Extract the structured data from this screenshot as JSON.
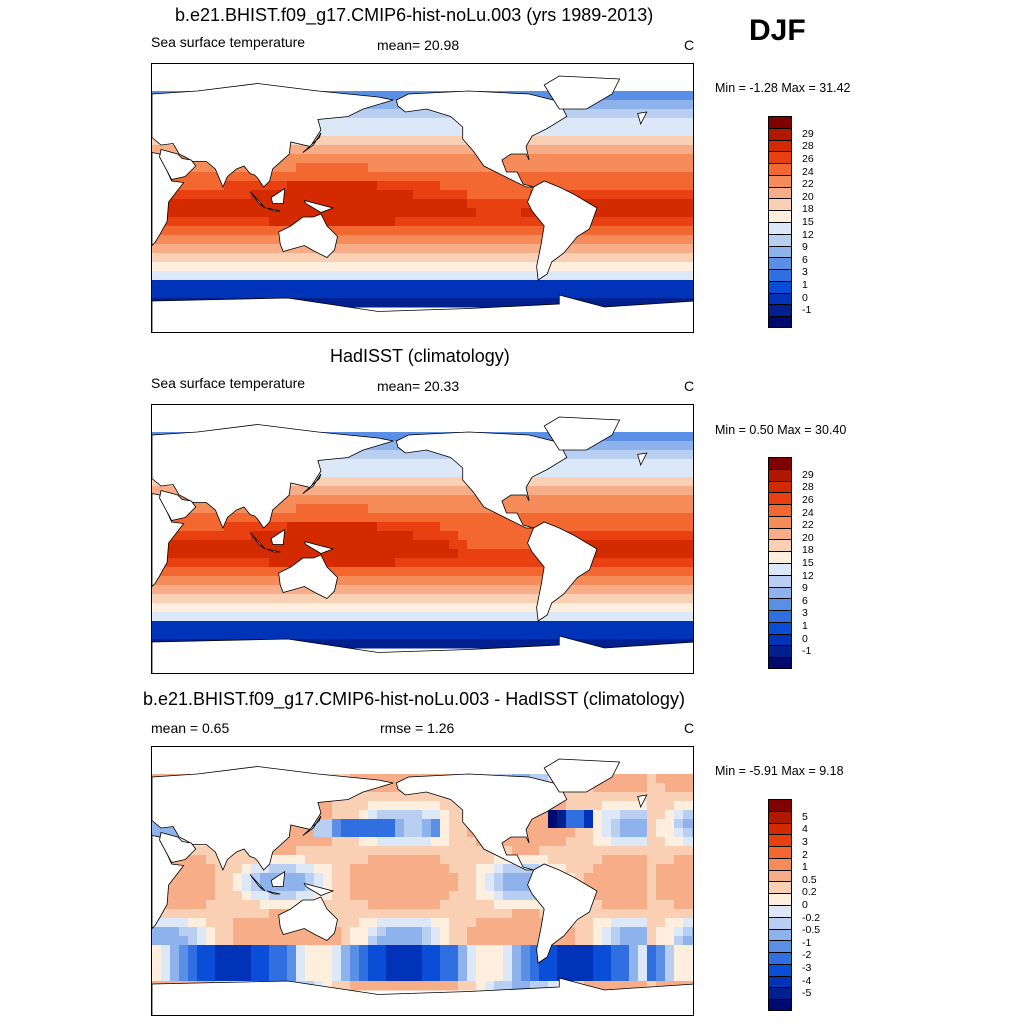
{
  "season": "DJF",
  "panels": [
    {
      "title": "b.e21.BHIST.f09_g17.CMIP6-hist-noLu.003 (yrs 1989-2013)",
      "left_label": "Sea surface temperature",
      "center_label": "mean=  20.98",
      "units": "C",
      "minmax": "Min =  -1.28 Max =  31.42",
      "field": "model"
    },
    {
      "title": "HadISST (climatology)",
      "left_label": "Sea surface temperature",
      "center_label": "mean=  20.33",
      "units": "C",
      "minmax": "Min =   0.50 Max =  30.40",
      "field": "obs"
    },
    {
      "title": "b.e21.BHIST.f09_g17.CMIP6-hist-noLu.003 - HadISST (climatology)",
      "left_label": "mean =   0.65",
      "center_label": "rmse =   1.26",
      "units": "C",
      "minmax": "Min =  -5.91 Max =   9.18",
      "field": "diff"
    }
  ],
  "colorbars": {
    "sst": {
      "colors": [
        "#800000",
        "#b01800",
        "#d42a00",
        "#e84010",
        "#f26830",
        "#f58c5a",
        "#f7ad88",
        "#fad0b4",
        "#fdeedd",
        "#dce8f8",
        "#b8cff2",
        "#8eb2ec",
        "#5a8fe6",
        "#2f6fe0",
        "#0a4ed8",
        "#0033b8",
        "#002090",
        "#000a6e"
      ],
      "labels": [
        "29",
        "28",
        "26",
        "24",
        "22",
        "20",
        "18",
        "15",
        "12",
        "9",
        "6",
        "3",
        "1",
        "0",
        "-1"
      ]
    },
    "diff": {
      "colors": [
        "#800000",
        "#b01800",
        "#d42a00",
        "#e84010",
        "#f26830",
        "#f58c5a",
        "#f7ad88",
        "#fad0b4",
        "#fdeedd",
        "#dce8f8",
        "#b8cff2",
        "#8eb2ec",
        "#5a8fe6",
        "#2f6fe0",
        "#0a4ed8",
        "#0033b8",
        "#002090",
        "#000a6e"
      ],
      "labels": [
        "5",
        "4",
        "3",
        "2",
        "1",
        "0.5",
        "0.2",
        "0",
        "-0.2",
        "-0.5",
        "-1",
        "-2",
        "-3",
        "-4",
        "-5"
      ]
    }
  },
  "chart_data": [
    {
      "type": "heatmap",
      "title": "b.e21.BHIST.f09_g17.CMIP6-hist-noLu.003 (yrs 1989-2013)",
      "variable": "Sea surface temperature",
      "units": "C",
      "mean": 20.98,
      "min": -1.28,
      "max": 31.42,
      "contour_levels": [
        -1,
        0,
        1,
        3,
        6,
        9,
        12,
        15,
        18,
        20,
        22,
        24,
        26,
        28,
        29
      ]
    },
    {
      "type": "heatmap",
      "title": "HadISST (climatology)",
      "variable": "Sea surface temperature",
      "units": "C",
      "mean": 20.33,
      "min": 0.5,
      "max": 30.4,
      "contour_levels": [
        -1,
        0,
        1,
        3,
        6,
        9,
        12,
        15,
        18,
        20,
        22,
        24,
        26,
        28,
        29
      ]
    },
    {
      "type": "heatmap",
      "title": "b.e21.BHIST.f09_g17.CMIP6-hist-noLu.003 - HadISST (climatology)",
      "units": "C",
      "mean": 0.65,
      "rmse": 1.26,
      "min": -5.91,
      "max": 9.18,
      "contour_levels": [
        -5,
        -4,
        -3,
        -2,
        -1,
        -0.5,
        -0.2,
        0,
        0.2,
        0.5,
        1,
        2,
        3,
        4,
        5
      ]
    }
  ]
}
